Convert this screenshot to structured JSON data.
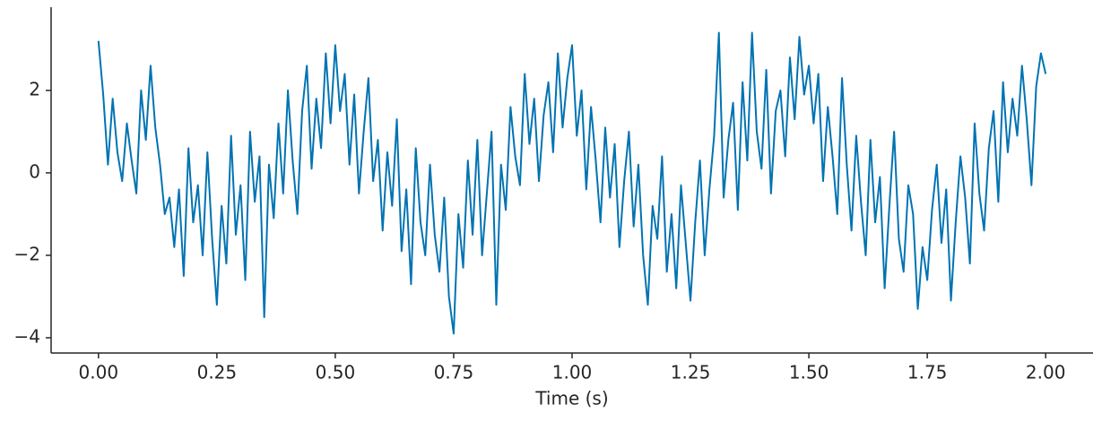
{
  "chart_data": {
    "type": "line",
    "xlabel": "Time (s)",
    "x": [
      0,
      0.01,
      0.02,
      0.03,
      0.04,
      0.05,
      0.06,
      0.07,
      0.08,
      0.09,
      0.1,
      0.11,
      0.12,
      0.13,
      0.14,
      0.15,
      0.16,
      0.17,
      0.18,
      0.19,
      0.2,
      0.21,
      0.22,
      0.23,
      0.24,
      0.25,
      0.26,
      0.27,
      0.28,
      0.29,
      0.3,
      0.31,
      0.32,
      0.33,
      0.34,
      0.35,
      0.36,
      0.37,
      0.38,
      0.39,
      0.4,
      0.41,
      0.42,
      0.43,
      0.44,
      0.45,
      0.46,
      0.47,
      0.48,
      0.49,
      0.5,
      0.51,
      0.52,
      0.53,
      0.54,
      0.55,
      0.56,
      0.57,
      0.58,
      0.59,
      0.6,
      0.61,
      0.62,
      0.63,
      0.64,
      0.65,
      0.66,
      0.67,
      0.68,
      0.69,
      0.7,
      0.71,
      0.72,
      0.73,
      0.74,
      0.75,
      0.76,
      0.77,
      0.78,
      0.79,
      0.8,
      0.81,
      0.82,
      0.83,
      0.84,
      0.85,
      0.86,
      0.87,
      0.88,
      0.89,
      0.9,
      0.91,
      0.92,
      0.93,
      0.94,
      0.95,
      0.96,
      0.97,
      0.98,
      0.99,
      1.0,
      1.01,
      1.02,
      1.03,
      1.04,
      1.05,
      1.06,
      1.07,
      1.08,
      1.09,
      1.1,
      1.11,
      1.12,
      1.13,
      1.14,
      1.15,
      1.16,
      1.17,
      1.18,
      1.19,
      1.2,
      1.21,
      1.22,
      1.23,
      1.24,
      1.25,
      1.26,
      1.27,
      1.28,
      1.29,
      1.3,
      1.31,
      1.32,
      1.33,
      1.34,
      1.35,
      1.36,
      1.37,
      1.38,
      1.39,
      1.4,
      1.41,
      1.42,
      1.43,
      1.44,
      1.45,
      1.46,
      1.47,
      1.48,
      1.49,
      1.5,
      1.51,
      1.52,
      1.53,
      1.54,
      1.55,
      1.56,
      1.57,
      1.58,
      1.59,
      1.6,
      1.61,
      1.62,
      1.63,
      1.64,
      1.65,
      1.66,
      1.67,
      1.68,
      1.69,
      1.7,
      1.71,
      1.72,
      1.73,
      1.74,
      1.75,
      1.76,
      1.77,
      1.78,
      1.79,
      1.8,
      1.81,
      1.82,
      1.83,
      1.84,
      1.85,
      1.86,
      1.87,
      1.88,
      1.89,
      1.9,
      1.91,
      1.92,
      1.93,
      1.94,
      1.95,
      1.96,
      1.97,
      1.98,
      1.99,
      2.0
    ],
    "series": [
      {
        "color": "#0173b2",
        "values": [
          3.2,
          1.9,
          0.2,
          1.8,
          0.5,
          -0.2,
          1.2,
          0.3,
          -0.5,
          2.0,
          0.8,
          2.6,
          1.1,
          0.2,
          -1.0,
          -0.6,
          -1.8,
          -0.4,
          -2.5,
          0.6,
          -1.2,
          -0.3,
          -2.0,
          0.5,
          -1.6,
          -3.2,
          -0.8,
          -2.2,
          0.9,
          -1.5,
          -0.3,
          -2.6,
          1.0,
          -0.7,
          0.4,
          -3.5,
          0.2,
          -1.1,
          1.2,
          -0.5,
          2.0,
          0.3,
          -1.0,
          1.5,
          2.6,
          0.1,
          1.8,
          0.6,
          2.9,
          1.2,
          3.1,
          1.5,
          2.4,
          0.2,
          1.9,
          -0.5,
          1.0,
          2.3,
          -0.2,
          0.8,
          -1.4,
          0.5,
          -0.8,
          1.3,
          -1.9,
          -0.4,
          -2.7,
          0.6,
          -1.2,
          -2.0,
          0.2,
          -1.5,
          -2.4,
          -0.6,
          -3.0,
          -3.9,
          -1.0,
          -2.3,
          0.3,
          -1.5,
          0.8,
          -2.0,
          -0.5,
          1.0,
          -3.2,
          0.2,
          -0.9,
          1.6,
          0.4,
          -0.3,
          2.4,
          0.7,
          1.8,
          -0.2,
          1.4,
          2.2,
          0.5,
          2.9,
          1.1,
          2.3,
          3.1,
          0.9,
          2.0,
          -0.4,
          1.6,
          0.3,
          -1.2,
          1.1,
          -0.6,
          0.7,
          -1.8,
          -0.2,
          1.0,
          -1.3,
          0.2,
          -2.0,
          -3.2,
          -0.8,
          -1.6,
          0.4,
          -2.4,
          -1.0,
          -2.8,
          -0.3,
          -1.7,
          -3.1,
          -1.2,
          0.3,
          -2.0,
          -0.4,
          0.9,
          3.4,
          -0.6,
          0.8,
          1.7,
          -0.9,
          2.2,
          0.3,
          3.4,
          1.0,
          0.1,
          2.5,
          -0.5,
          1.5,
          2.0,
          0.4,
          2.8,
          1.3,
          3.3,
          1.9,
          2.6,
          1.2,
          2.4,
          -0.2,
          1.6,
          0.4,
          -1.0,
          2.3,
          0.2,
          -1.4,
          0.9,
          -0.7,
          -2.0,
          0.8,
          -1.2,
          -0.1,
          -2.8,
          -0.8,
          1.0,
          -1.6,
          -2.4,
          -0.3,
          -1.0,
          -3.3,
          -1.8,
          -2.6,
          -0.9,
          0.2,
          -1.7,
          -0.4,
          -3.1,
          -1.2,
          0.4,
          -0.6,
          -2.2,
          1.2,
          -0.5,
          -1.4,
          0.6,
          1.5,
          -0.7,
          2.2,
          0.5,
          1.8,
          0.9,
          2.6,
          1.3,
          -0.3,
          2.1,
          2.9,
          2.4
        ]
      }
    ],
    "xlim": [
      -0.1,
      2.1
    ],
    "ylim": [
      -4.37,
      4.02
    ],
    "xticks": [
      {
        "value": 0,
        "label": "0.00"
      },
      {
        "value": 0.25,
        "label": "0.25"
      },
      {
        "value": 0.5,
        "label": "0.50"
      },
      {
        "value": 0.75,
        "label": "0.75"
      },
      {
        "value": 1,
        "label": "1.00"
      },
      {
        "value": 1.25,
        "label": "1.25"
      },
      {
        "value": 1.5,
        "label": "1.50"
      },
      {
        "value": 1.75,
        "label": "1.75"
      },
      {
        "value": 2,
        "label": "2.00"
      }
    ],
    "yticks": [
      {
        "value": -4,
        "label": "−4"
      },
      {
        "value": -2,
        "label": "−2"
      },
      0,
      2
    ]
  }
}
